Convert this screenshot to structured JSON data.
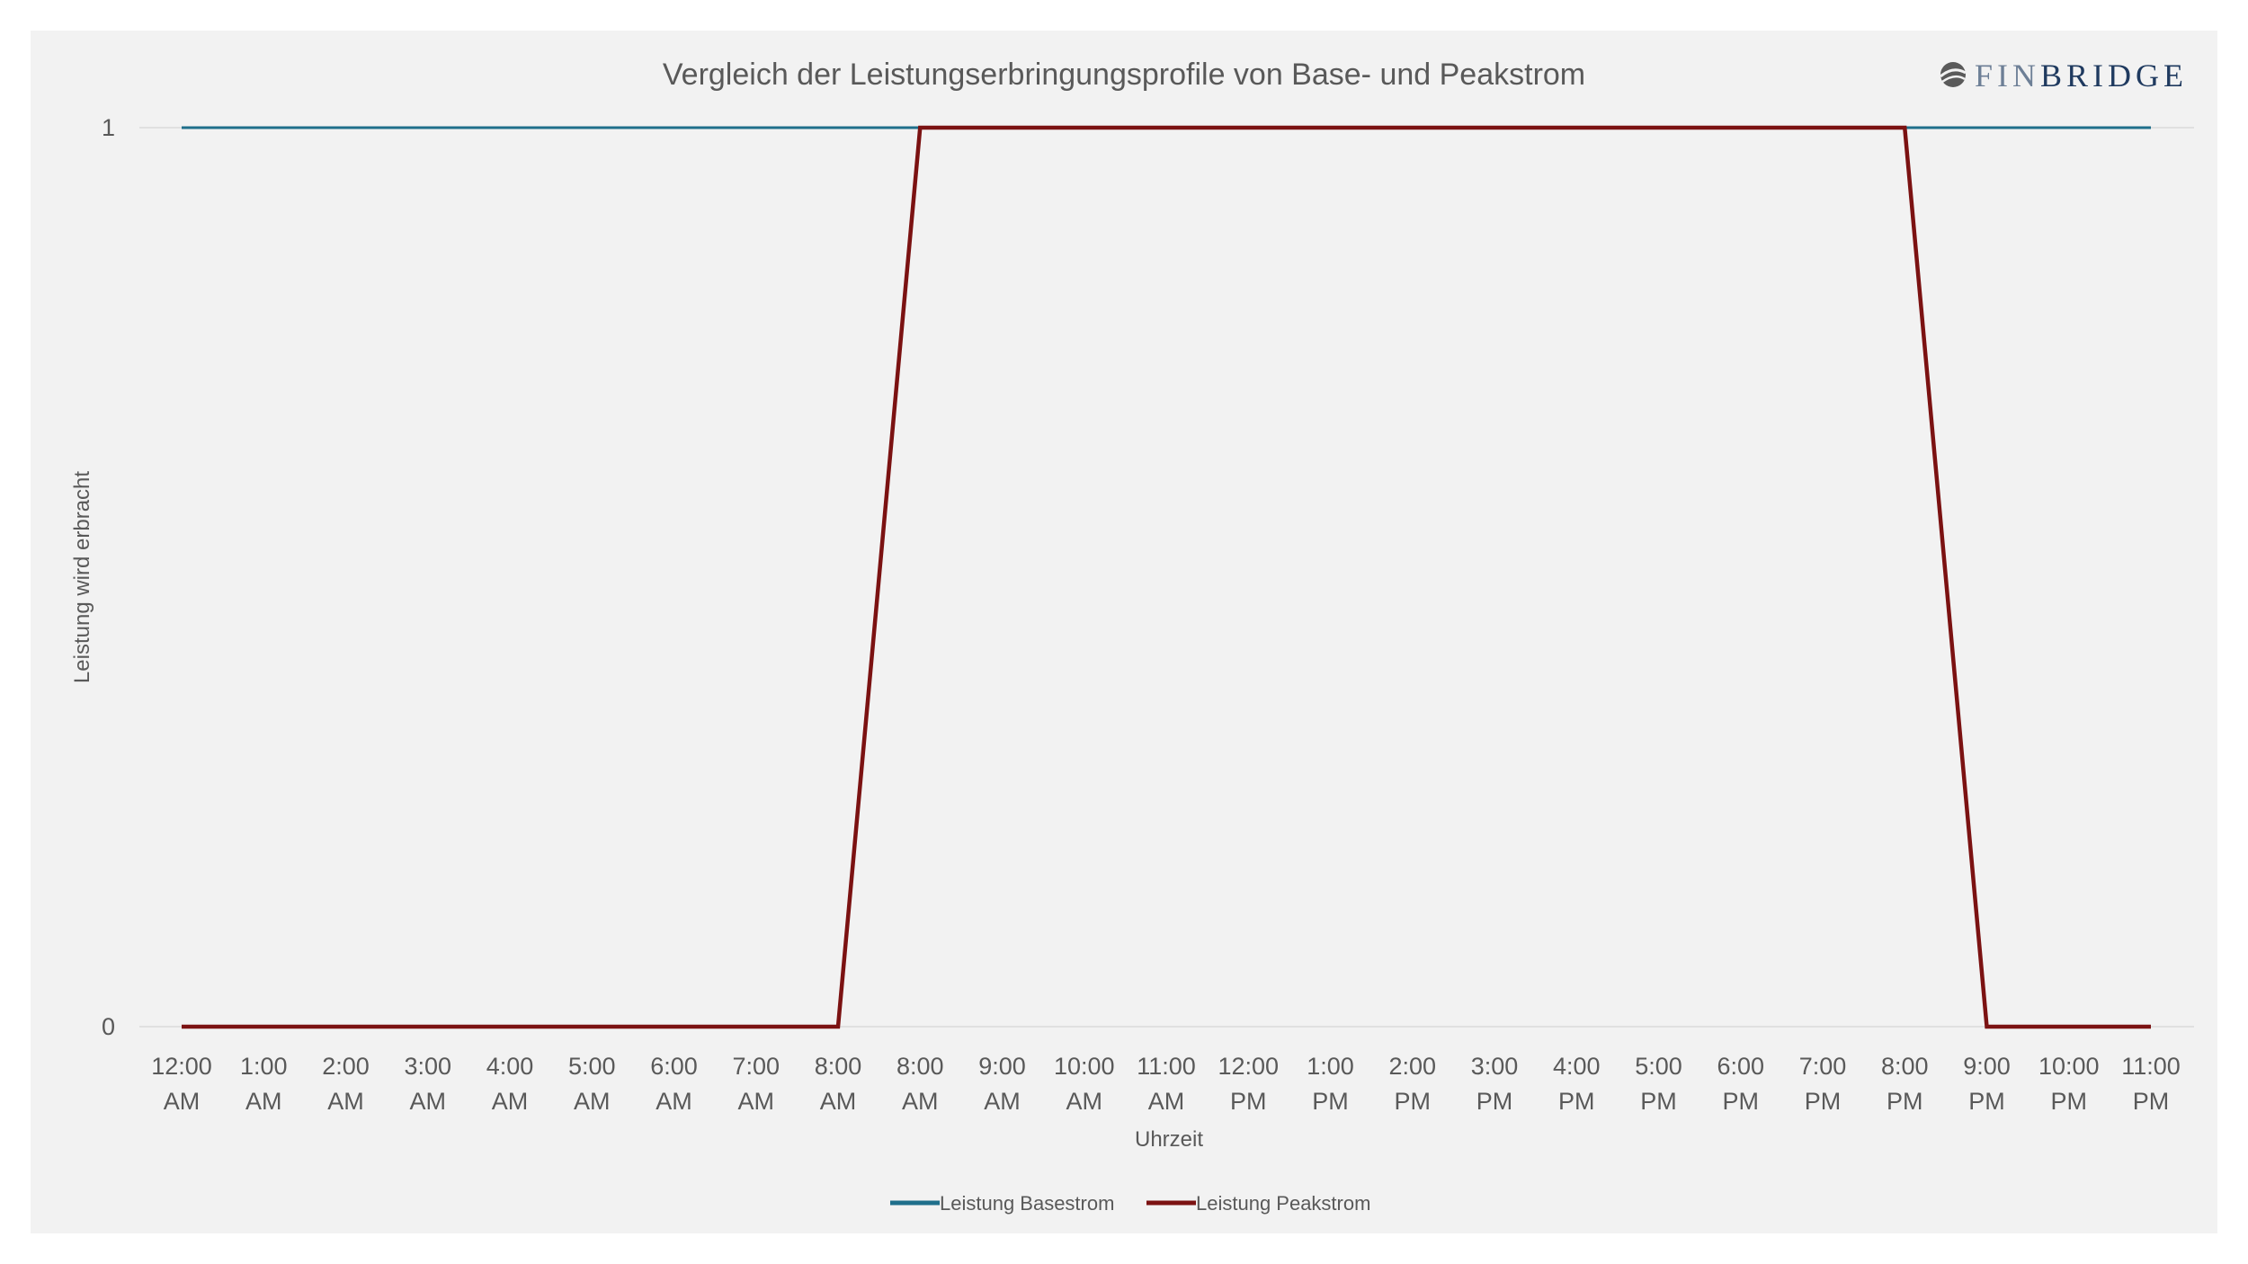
{
  "logo": {
    "text_light": "FIN",
    "text_bold": "BRIDGE"
  },
  "colors": {
    "base": "#1f6f8b",
    "peak": "#7b1212",
    "grid": "#d9d9d9",
    "text": "#595959"
  },
  "chart_data": {
    "type": "line",
    "title": "Vergleich der Leistungserbringungsprofile von Base- und Peakstrom",
    "xlabel": "Uhrzeit",
    "ylabel": "Leistung wird erbracht",
    "ylim": [
      0,
      1
    ],
    "yticks": [
      "0",
      "1"
    ],
    "categories": [
      [
        "12:00",
        "AM"
      ],
      [
        "1:00",
        "AM"
      ],
      [
        "2:00",
        "AM"
      ],
      [
        "3:00",
        "AM"
      ],
      [
        "4:00",
        "AM"
      ],
      [
        "5:00",
        "AM"
      ],
      [
        "6:00",
        "AM"
      ],
      [
        "7:00",
        "AM"
      ],
      [
        "8:00",
        "AM"
      ],
      [
        "8:00",
        "AM"
      ],
      [
        "9:00",
        "AM"
      ],
      [
        "10:00",
        "AM"
      ],
      [
        "11:00",
        "AM"
      ],
      [
        "12:00",
        "PM"
      ],
      [
        "1:00",
        "PM"
      ],
      [
        "2:00",
        "PM"
      ],
      [
        "3:00",
        "PM"
      ],
      [
        "4:00",
        "PM"
      ],
      [
        "5:00",
        "PM"
      ],
      [
        "6:00",
        "PM"
      ],
      [
        "7:00",
        "PM"
      ],
      [
        "8:00",
        "PM"
      ],
      [
        "9:00",
        "PM"
      ],
      [
        "10:00",
        "PM"
      ],
      [
        "11:00",
        "PM"
      ]
    ],
    "series": [
      {
        "name": "Leistung Basestrom",
        "color": "#1f6f8b",
        "values": [
          1,
          1,
          1,
          1,
          1,
          1,
          1,
          1,
          1,
          1,
          1,
          1,
          1,
          1,
          1,
          1,
          1,
          1,
          1,
          1,
          1,
          1,
          1,
          1,
          1
        ]
      },
      {
        "name": "Leistung Peakstrom",
        "color": "#7b1212",
        "values": [
          0,
          0,
          0,
          0,
          0,
          0,
          0,
          0,
          0,
          1,
          1,
          1,
          1,
          1,
          1,
          1,
          1,
          1,
          1,
          1,
          1,
          1,
          0,
          0,
          0
        ]
      }
    ],
    "grid": true,
    "legend": "bottom"
  }
}
